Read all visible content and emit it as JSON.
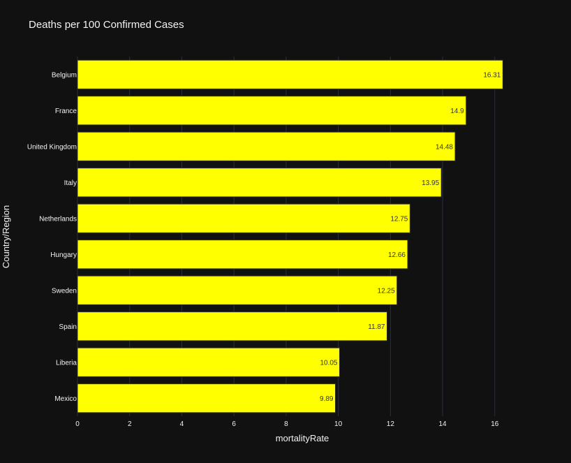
{
  "chart_data": {
    "type": "bar",
    "orientation": "horizontal",
    "title": "Deaths per 100 Confirmed Cases",
    "xlabel": "mortalityRate",
    "ylabel": "Country/Region",
    "categories": [
      "Belgium",
      "France",
      "United Kingdom",
      "Italy",
      "Netherlands",
      "Hungary",
      "Sweden",
      "Spain",
      "Liberia",
      "Mexico"
    ],
    "values": [
      16.31,
      14.9,
      14.48,
      13.95,
      12.75,
      12.66,
      12.25,
      11.87,
      10.05,
      9.89
    ],
    "value_labels": [
      "16.31",
      "14.9",
      "14.48",
      "13.95",
      "12.75",
      "12.66",
      "12.25",
      "11.87",
      "10.05",
      "9.89"
    ],
    "xlim": [
      0,
      16.3
    ],
    "xticks": [
      0,
      2,
      4,
      6,
      8,
      10,
      12,
      14,
      16
    ],
    "grid": true,
    "legend": false,
    "colors": {
      "background": "#111111",
      "bar": "#ffff00",
      "bar_outline": "#333333",
      "grid": "#2a3040",
      "text": "#f2f2f2"
    }
  }
}
